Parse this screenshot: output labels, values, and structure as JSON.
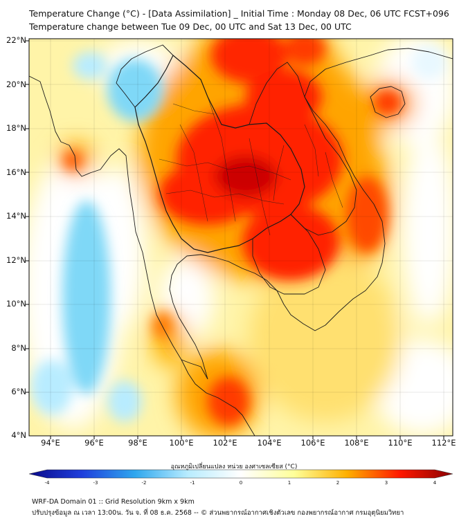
{
  "title": {
    "line1": "Temperature Change (°C) - [Data Assimilation] _ Initial Time : Monday 08 Dec, 06 UTC FCST+096",
    "line2": "Temperature change between Tue 09 Dec, 00 UTC and Sat 13 Dec, 00 UTC"
  },
  "axes": {
    "lat_labels": [
      "22°N",
      "20°N",
      "18°N",
      "16°N",
      "14°N",
      "12°N",
      "10°N",
      "8°N",
      "6°N",
      "4°N"
    ],
    "lon_labels": [
      "94°E",
      "96°E",
      "98°E",
      "100°E",
      "102°E",
      "104°E",
      "106°E",
      "108°E",
      "110°E",
      "112°E"
    ],
    "lat_range": [
      4,
      22.2
    ],
    "lon_range": [
      93,
      112.4
    ]
  },
  "map": {
    "region": "Mainland Southeast Asia",
    "variable": "2-m temperature change",
    "unit": "°C",
    "warm_center_lon_lat": [
      103,
      15.5
    ],
    "warm_center_change": 3.5,
    "cool_area_lon_lat": [
      95.5,
      11
    ],
    "cool_area_change": -1.5
  },
  "colorbar": {
    "label": "อุณหภูมิเปลี่ยนแปลง หน่วย องศาเซลเซียส (°C)",
    "min": -4,
    "max": 4,
    "tick_labels": [
      "-4",
      "-3",
      "-2",
      "-1",
      "0",
      "1",
      "2",
      "3",
      "4"
    ],
    "colors": [
      "#0a0a8a",
      "#1f3fdc",
      "#2fa7ee",
      "#b8ecff",
      "#ffffff",
      "#ffff9a",
      "#ffb000",
      "#ff1800",
      "#8a0000"
    ]
  },
  "footer": {
    "line1": "WRF-DA Domain 01 :: Grid Resolution 9km x 9km",
    "line2": "ปรับปรุงข้อมูล ณ เวลา 13:00น. วัน จ. ที่ 08 ธ.ค. 2568 -- © ส่วนพยากรณ์อากาศเชิงตัวเลข กองพยากรณ์อากาศ กรมอุตุนิยมวิทยา"
  }
}
